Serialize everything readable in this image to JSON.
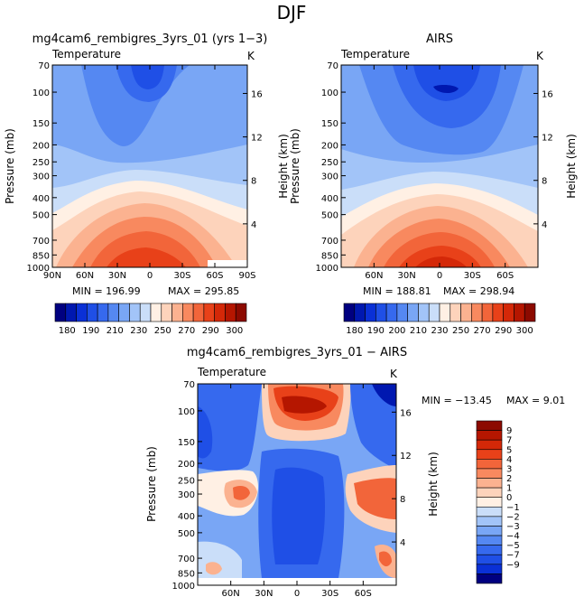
{
  "page": {
    "title": "DJF",
    "colors": {
      "blues": [
        "#000080",
        "#0018b0",
        "#0a30d6",
        "#1f4fe6",
        "#3669ee",
        "#5588f2",
        "#79a6f5",
        "#a2c4f8",
        "#cadef9"
      ],
      "warm": [
        "#fff0e4",
        "#fdd3bb",
        "#fbb290",
        "#f8895f",
        "#f2653a",
        "#e84119",
        "#d42808",
        "#b51600",
        "#8c0a00"
      ]
    }
  },
  "chart_data": [
    {
      "type": "heatmap",
      "subtype": "filled-contour latitude-pressure cross-section",
      "title": "mg4cam6_rembigres_3yrs_01 (yrs 1−3)",
      "variable": "Temperature",
      "units": "K",
      "ylabel": "Pressure (mb)",
      "y2label": "Height (km)",
      "ylim": [
        1000,
        70
      ],
      "pressure_ticks": [
        "70",
        "100",
        "150",
        "200",
        "250",
        "300",
        "400",
        "500",
        "700",
        "850",
        "1000"
      ],
      "height_ticks": [
        "4",
        "8",
        "12",
        "16"
      ],
      "lat_ticks": [
        "90N",
        "60N",
        "30N",
        "0",
        "30S",
        "60S",
        "90S"
      ],
      "stats": {
        "min": "MIN = 196.99",
        "max": "MAX = 295.85"
      },
      "colorbar_labels": [
        "180",
        "190",
        "210",
        "230",
        "250",
        "270",
        "290",
        "300"
      ]
    },
    {
      "type": "heatmap",
      "subtype": "filled-contour latitude-pressure cross-section",
      "title": "AIRS",
      "variable": "Temperature",
      "units": "K",
      "ylabel": "Pressure (mb)",
      "y2label": "Height (km)",
      "ylim": [
        1000,
        70
      ],
      "pressure_ticks": [
        "70",
        "100",
        "150",
        "200",
        "250",
        "300",
        "400",
        "500",
        "700",
        "850",
        "1000"
      ],
      "height_ticks": [
        "4",
        "8",
        "12",
        "16"
      ],
      "lat_ticks": [
        "60N",
        "30N",
        "0",
        "30S",
        "60S"
      ],
      "stats": {
        "min": "MIN = 188.81",
        "max": "MAX = 298.94"
      },
      "colorbar_labels": [
        "180",
        "190",
        "200",
        "210",
        "230",
        "250",
        "270",
        "290",
        "300"
      ]
    },
    {
      "type": "heatmap",
      "subtype": "filled-contour latitude-pressure difference",
      "title": "mg4cam6_rembigres_3yrs_01 − AIRS",
      "variable": "Temperature",
      "units": "K",
      "ylabel": "Pressure (mb)",
      "y2label": "Height (km)",
      "ylim": [
        1000,
        70
      ],
      "pressure_ticks": [
        "70",
        "100",
        "150",
        "200",
        "250",
        "300",
        "400",
        "500",
        "700",
        "850",
        "1000"
      ],
      "height_ticks": [
        "4",
        "8",
        "12",
        "16"
      ],
      "lat_ticks": [
        "60N",
        "30N",
        "0",
        "30S",
        "60S"
      ],
      "stats": {
        "min": "MIN = −13.45",
        "max": "MAX =    9.01"
      },
      "colorbar_labels": [
        "9",
        "7",
        "5",
        "4",
        "3",
        "2",
        "1",
        "0",
        "−1",
        "−2",
        "−3",
        "−4",
        "−5",
        "−7",
        "−9"
      ]
    }
  ]
}
